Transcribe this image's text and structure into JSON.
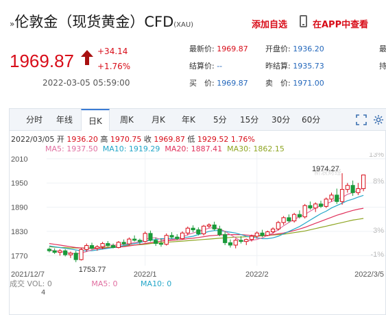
{
  "header": {
    "title_prefix": "»",
    "title_main": "伦敦金（现货黄金）CFD",
    "title_code": "(XAU)",
    "add_favorite": "添加自选",
    "app_link": "在APP中查看"
  },
  "quote": {
    "price": "1969.87",
    "change": "+34.14",
    "change_pct": "+1.76%",
    "datetime": "2022-03-05 05:59:00",
    "stats": [
      {
        "label": "最新价: ",
        "value": "1969.87",
        "color": "red"
      },
      {
        "label": "开盘价: ",
        "value": "1936.20",
        "color": "blue"
      },
      {
        "label": "最",
        "value": "",
        "color": "blue"
      },
      {
        "label": "结算价: ",
        "value": "--",
        "color": "blue"
      },
      {
        "label": "昨结算: ",
        "value": "1935.73",
        "color": "blue"
      },
      {
        "label": "持",
        "value": "",
        "color": "blue"
      },
      {
        "label": "买　价: ",
        "value": "1969.87",
        "color": "blue"
      },
      {
        "label": "卖　价: ",
        "value": "1971.00",
        "color": "blue"
      }
    ]
  },
  "tabs": [
    "分时",
    "年线",
    "日K",
    "周K",
    "月K",
    "年K",
    "5分",
    "15分",
    "30分",
    "60分"
  ],
  "active_tab": "日K",
  "ohlc": {
    "date": "2022/03/05",
    "open_label": "开",
    "open": "1936.20",
    "high_label": "高",
    "high": "1970.75",
    "close_label": "收",
    "close": "1969.87",
    "low_label": "低",
    "low": "1929.52",
    "pct": "1.76%"
  },
  "ma": {
    "ma5": "MA5: 1937.50",
    "ma10": "MA10: 1919.29",
    "ma20": "MA20: 1887.41",
    "ma30": "MA30: 1862.15"
  },
  "watermark": "新浪财经",
  "chart_data": {
    "type": "candlestick",
    "y_ticks": [
      "2010",
      "1950",
      "1890",
      "1830",
      "1770"
    ],
    "y_tick_values": [
      2010,
      1950,
      1890,
      1830,
      1770
    ],
    "pct_ticks": [
      "13%",
      "8%",
      "3%",
      "-1%"
    ],
    "pct_tick_values": [
      13,
      8,
      3,
      -1
    ],
    "ylim": [
      1745,
      2025
    ],
    "x_labels": [
      "2021/12/7",
      "2022/1",
      "2022/2",
      "2022/3/5"
    ],
    "x_label_index": [
      0,
      18,
      39,
      59
    ],
    "annotations": [
      {
        "text": "1974.27",
        "index": 55,
        "value": 1974.27
      },
      {
        "text": "1753.77",
        "index": 5,
        "value": 1753.77
      }
    ],
    "candles": [
      [
        1786,
        1790,
        1778,
        1782
      ],
      [
        1782,
        1788,
        1774,
        1778
      ],
      [
        1778,
        1786,
        1770,
        1782
      ],
      [
        1782,
        1786,
        1768,
        1772
      ],
      [
        1772,
        1780,
        1764,
        1776
      ],
      [
        1776,
        1782,
        1753.77,
        1760
      ],
      [
        1760,
        1790,
        1758,
        1785
      ],
      [
        1785,
        1800,
        1780,
        1795
      ],
      [
        1795,
        1802,
        1785,
        1788
      ],
      [
        1788,
        1796,
        1782,
        1792
      ],
      [
        1792,
        1804,
        1786,
        1800
      ],
      [
        1800,
        1806,
        1792,
        1795
      ],
      [
        1795,
        1800,
        1788,
        1790
      ],
      [
        1790,
        1806,
        1788,
        1803
      ],
      [
        1803,
        1810,
        1796,
        1799
      ],
      [
        1799,
        1815,
        1796,
        1811
      ],
      [
        1811,
        1820,
        1805,
        1808
      ],
      [
        1808,
        1812,
        1798,
        1805
      ],
      [
        1805,
        1830,
        1802,
        1825
      ],
      [
        1825,
        1832,
        1805,
        1808
      ],
      [
        1808,
        1815,
        1794,
        1800
      ],
      [
        1800,
        1812,
        1792,
        1798
      ],
      [
        1798,
        1825,
        1795,
        1820
      ],
      [
        1820,
        1828,
        1812,
        1816
      ],
      [
        1816,
        1823,
        1808,
        1812
      ],
      [
        1812,
        1830,
        1810,
        1826
      ],
      [
        1826,
        1842,
        1820,
        1838
      ],
      [
        1838,
        1845,
        1828,
        1834
      ],
      [
        1834,
        1840,
        1820,
        1824
      ],
      [
        1824,
        1846,
        1820,
        1843
      ],
      [
        1843,
        1850,
        1838,
        1846
      ],
      [
        1846,
        1854,
        1832,
        1836
      ],
      [
        1836,
        1844,
        1818,
        1822
      ],
      [
        1822,
        1830,
        1796,
        1802
      ],
      [
        1802,
        1810,
        1790,
        1796
      ],
      [
        1796,
        1812,
        1788,
        1808
      ],
      [
        1808,
        1818,
        1800,
        1805
      ],
      [
        1805,
        1812,
        1796,
        1810
      ],
      [
        1810,
        1822,
        1805,
        1818
      ],
      [
        1818,
        1830,
        1812,
        1826
      ],
      [
        1826,
        1834,
        1816,
        1820
      ],
      [
        1820,
        1832,
        1818,
        1829
      ],
      [
        1829,
        1840,
        1824,
        1836
      ],
      [
        1836,
        1856,
        1832,
        1852
      ],
      [
        1852,
        1868,
        1846,
        1864
      ],
      [
        1864,
        1872,
        1852,
        1856
      ],
      [
        1856,
        1876,
        1852,
        1872
      ],
      [
        1872,
        1882,
        1862,
        1866
      ],
      [
        1866,
        1898,
        1862,
        1894
      ],
      [
        1894,
        1904,
        1884,
        1888
      ],
      [
        1888,
        1902,
        1878,
        1898
      ],
      [
        1898,
        1906,
        1888,
        1892
      ],
      [
        1892,
        1914,
        1888,
        1910
      ],
      [
        1910,
        1926,
        1904,
        1920
      ],
      [
        1920,
        1936,
        1898,
        1904
      ],
      [
        1904,
        1974.27,
        1896,
        1934
      ],
      [
        1934,
        1950,
        1926,
        1944
      ],
      [
        1944,
        1956,
        1918,
        1926
      ],
      [
        1926,
        1950,
        1920,
        1936
      ],
      [
        1936,
        1970.75,
        1929.52,
        1969.87
      ]
    ],
    "ma5_series": [
      1784,
      1782,
      1780,
      1778,
      1776,
      1774,
      1776,
      1780,
      1784,
      1788,
      1792,
      1796,
      1796,
      1796,
      1798,
      1800,
      1802,
      1804,
      1810,
      1814,
      1814,
      1810,
      1808,
      1810,
      1812,
      1816,
      1822,
      1826,
      1830,
      1834,
      1838,
      1840,
      1836,
      1830,
      1822,
      1814,
      1806,
      1806,
      1808,
      1810,
      1814,
      1820,
      1826,
      1834,
      1844,
      1852,
      1860,
      1866,
      1872,
      1880,
      1888,
      1894,
      1898,
      1904,
      1910,
      1914,
      1922,
      1926,
      1932,
      1937.5
    ],
    "ma10_series": [
      1794,
      1792,
      1790,
      1788,
      1786,
      1784,
      1782,
      1782,
      1782,
      1784,
      1786,
      1788,
      1790,
      1792,
      1795,
      1798,
      1800,
      1802,
      1806,
      1808,
      1810,
      1812,
      1812,
      1812,
      1812,
      1814,
      1816,
      1818,
      1822,
      1826,
      1830,
      1832,
      1832,
      1830,
      1828,
      1826,
      1822,
      1818,
      1816,
      1814,
      1812,
      1812,
      1814,
      1818,
      1824,
      1830,
      1836,
      1842,
      1850,
      1858,
      1866,
      1874,
      1880,
      1888,
      1894,
      1900,
      1906,
      1910,
      1915,
      1919.29
    ],
    "ma20_series": [
      1800,
      1798,
      1796,
      1794,
      1792,
      1790,
      1789,
      1788,
      1788,
      1788,
      1788,
      1789,
      1790,
      1791,
      1792,
      1794,
      1796,
      1798,
      1800,
      1802,
      1804,
      1806,
      1807,
      1808,
      1809,
      1810,
      1812,
      1813,
      1815,
      1817,
      1819,
      1820,
      1821,
      1822,
      1822,
      1822,
      1822,
      1821,
      1820,
      1820,
      1820,
      1821,
      1822,
      1824,
      1826,
      1829,
      1832,
      1836,
      1840,
      1845,
      1850,
      1855,
      1860,
      1865,
      1870,
      1874,
      1878,
      1882,
      1885,
      1887.41
    ],
    "ma30_series": [
      1792,
      1791,
      1790,
      1790,
      1789,
      1789,
      1789,
      1789,
      1789,
      1790,
      1790,
      1791,
      1792,
      1793,
      1794,
      1795,
      1796,
      1797,
      1798,
      1800,
      1801,
      1802,
      1803,
      1804,
      1805,
      1806,
      1807,
      1808,
      1809,
      1810,
      1811,
      1812,
      1813,
      1814,
      1815,
      1816,
      1816,
      1817,
      1817,
      1818,
      1819,
      1820,
      1821,
      1822,
      1823,
      1825,
      1827,
      1829,
      1831,
      1834,
      1837,
      1840,
      1843,
      1846,
      1849,
      1852,
      1855,
      1858,
      1860,
      1862.15
    ]
  },
  "volume": {
    "label": "成交",
    "vol": "VOL: 0",
    "ma5": "MA5: 0",
    "ma10": "MA10: 0",
    "unit_digit": "4"
  },
  "colors": {
    "up": "#d80c18",
    "down": "#1a9a3a",
    "ma5": "#e06ea0",
    "ma10": "#23a6c8",
    "ma20": "#e0305a",
    "ma30": "#8ea522"
  }
}
